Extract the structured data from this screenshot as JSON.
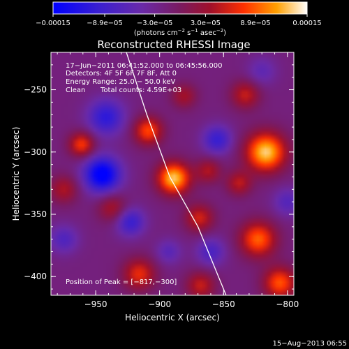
{
  "chart_data": {
    "type": "heatmap",
    "title": "Reconstructed RHESSI Image",
    "xlabel": "Heliocentric X (arcsec)",
    "ylabel": "Heliocentric Y (arcsec)",
    "xlim": [
      -985,
      -795
    ],
    "ylim": [
      -415,
      -220
    ],
    "x_ticks": [
      -950,
      -900,
      -850,
      -800
    ],
    "y_ticks": [
      -250,
      -300,
      -350,
      -400
    ],
    "x_tick_labels": [
      "−950",
      "−900",
      "−850",
      "−800"
    ],
    "y_tick_labels": [
      "−250",
      "−300",
      "−350",
      "−400"
    ],
    "colorbar": {
      "range": [
        -0.00015,
        0.00015
      ],
      "tick_values": [
        -0.00015,
        -8.9e-05,
        -3e-05,
        3e-05,
        8.9e-05,
        0.00015
      ],
      "tick_labels": [
        "−0.00015",
        "−8.9e−05",
        "−3.0e−05",
        "3.0e−05",
        "8.9e−05",
        "0.00015"
      ],
      "units_prefix": "(photons cm",
      "units_sup1": "−2",
      "units_mid": " s",
      "units_sup2": "−1",
      "units_mid2": " asec",
      "units_sup3": "−2",
      "units_suffix": ")"
    },
    "annotations": {
      "time_range": "17−Jun−2011 06:41:52.000 to 06:45:56.000",
      "detectors": "Detectors: 4F 5F 6F 7F 8F, Att 0",
      "energy": "Energy Range: 25.0 − 50.0 keV",
      "clean": "Clean",
      "counts": "Total counts: 4.59E+03",
      "peak": "Position of Peak = [−817,−300]"
    },
    "footer": "15−Aug−2013 06:55",
    "limb_curve": [
      [
        -926,
        -220
      ],
      [
        -910,
        -270
      ],
      [
        -892,
        -320
      ],
      [
        -870,
        -360
      ],
      [
        -848,
        -415
      ]
    ],
    "sources": [
      {
        "x": -889,
        "y": -321,
        "amp": 0.000148,
        "sigma": 9
      },
      {
        "x": -817,
        "y": -300,
        "amp": 0.00015,
        "sigma": 11
      },
      {
        "x": -909,
        "y": -283,
        "amp": 0.0001,
        "sigma": 8
      },
      {
        "x": -823,
        "y": -370,
        "amp": 0.00011,
        "sigma": 10
      },
      {
        "x": -806,
        "y": -405,
        "amp": 0.000105,
        "sigma": 9
      },
      {
        "x": -961,
        "y": -294,
        "amp": 9.5e-05,
        "sigma": 7
      },
      {
        "x": -916,
        "y": -398,
        "amp": 8.5e-05,
        "sigma": 9
      },
      {
        "x": -869,
        "y": -353,
        "amp": 7.5e-05,
        "sigma": 8
      },
      {
        "x": -833,
        "y": -254,
        "amp": 7e-05,
        "sigma": 8
      },
      {
        "x": -862,
        "y": -315,
        "amp": 6e-05,
        "sigma": 7
      },
      {
        "x": -868,
        "y": -407,
        "amp": 7e-05,
        "sigma": 8
      },
      {
        "x": -937,
        "y": -345,
        "amp": 6e-05,
        "sigma": 8
      },
      {
        "x": -881,
        "y": -255,
        "amp": 5.5e-05,
        "sigma": 7
      },
      {
        "x": -975,
        "y": -330,
        "amp": 6e-05,
        "sigma": 8
      },
      {
        "x": -838,
        "y": -325,
        "amp": 6.5e-05,
        "sigma": 7
      },
      {
        "x": -945,
        "y": -318,
        "amp": -0.000145,
        "sigma": 10
      },
      {
        "x": -923,
        "y": -356,
        "amp": -8e-05,
        "sigma": 8
      },
      {
        "x": -942,
        "y": -272,
        "amp": -9e-05,
        "sigma": 10
      },
      {
        "x": -855,
        "y": -290,
        "amp": -8e-05,
        "sigma": 8
      },
      {
        "x": -860,
        "y": -380,
        "amp": -6e-05,
        "sigma": 8
      },
      {
        "x": -975,
        "y": -370,
        "amp": -5.5e-05,
        "sigma": 8
      },
      {
        "x": -800,
        "y": -340,
        "amp": -5e-05,
        "sigma": 8
      },
      {
        "x": -893,
        "y": -380,
        "amp": -4.5e-05,
        "sigma": 7
      },
      {
        "x": -820,
        "y": -235,
        "amp": -4e-05,
        "sigma": 8
      }
    ],
    "background_level": -1.8e-05
  }
}
